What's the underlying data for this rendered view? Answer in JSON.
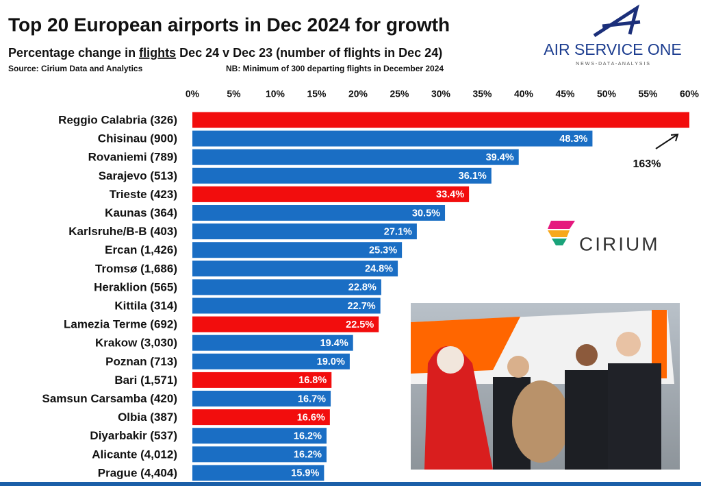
{
  "chart_data": {
    "type": "hbar",
    "title": "Top 20 European airports in Dec 2024 for growth",
    "subtitle_parts": [
      "Percentage change in ",
      "flights",
      " Dec 24 v Dec 23 (number of flights in Dec 24)"
    ],
    "source": "Source: Cirium Data and Analytics",
    "note": "NB: Minimum of 300 departing flights in December 2024",
    "categories": [
      "Reggio Calabria (326)",
      "Chisinau (900)",
      "Rovaniemi (789)",
      "Sarajevo (513)",
      "Trieste (423)",
      "Kaunas (364)",
      "Karlsruhe/B-B (403)",
      "Ercan (1,426)",
      "Tromsø (1,686)",
      "Heraklion (565)",
      "Kittila (314)",
      "Lamezia Terme (692)",
      "Krakow (3,030)",
      "Poznan (713)",
      "Bari (1,571)",
      "Samsun Carsamba (420)",
      "Olbia (387)",
      "Diyarbakir (537)",
      "Alicante (4,012)",
      "Prague (4,404)"
    ],
    "values": [
      163,
      48.3,
      39.4,
      36.1,
      33.4,
      30.5,
      27.1,
      25.3,
      24.8,
      22.8,
      22.7,
      22.5,
      19.4,
      19.0,
      16.8,
      16.7,
      16.6,
      16.2,
      16.2,
      15.9
    ],
    "value_labels": [
      "163%",
      "48.3%",
      "39.4%",
      "36.1%",
      "33.4%",
      "30.5%",
      "27.1%",
      "25.3%",
      "24.8%",
      "22.8%",
      "22.7%",
      "22.5%",
      "19.4%",
      "19.0%",
      "16.8%",
      "16.7%",
      "16.6%",
      "16.2%",
      "16.2%",
      "15.9%"
    ],
    "colors": [
      "#f20d0d",
      "#1a6ec4",
      "#1a6ec4",
      "#1a6ec4",
      "#f20d0d",
      "#1a6ec4",
      "#1a6ec4",
      "#1a6ec4",
      "#1a6ec4",
      "#1a6ec4",
      "#1a6ec4",
      "#f20d0d",
      "#1a6ec4",
      "#1a6ec4",
      "#f20d0d",
      "#1a6ec4",
      "#f20d0d",
      "#1a6ec4",
      "#1a6ec4",
      "#1a6ec4"
    ],
    "xlim": [
      0,
      60
    ],
    "xticks": [
      {
        "value": 0,
        "label": "0%"
      },
      {
        "value": 5,
        "label": "5%"
      },
      {
        "value": 10,
        "label": "10%"
      },
      {
        "value": 15,
        "label": "15%"
      },
      {
        "value": 20,
        "label": "20%"
      },
      {
        "value": 25,
        "label": "25%"
      },
      {
        "value": 30,
        "label": "30%"
      },
      {
        "value": 35,
        "label": "35%"
      },
      {
        "value": 40,
        "label": "40%"
      },
      {
        "value": 45,
        "label": "45%"
      },
      {
        "value": 50,
        "label": "50%"
      },
      {
        "value": 55,
        "label": "55%"
      },
      {
        "value": 60,
        "label": "60%"
      }
    ],
    "grid": false
  },
  "logos": {
    "air_service_one": "AIR SERVICE ONE",
    "tagline": "N E W S  -  D A T A  -  A N A L Y S I S",
    "cirium": "CIRIUM"
  }
}
